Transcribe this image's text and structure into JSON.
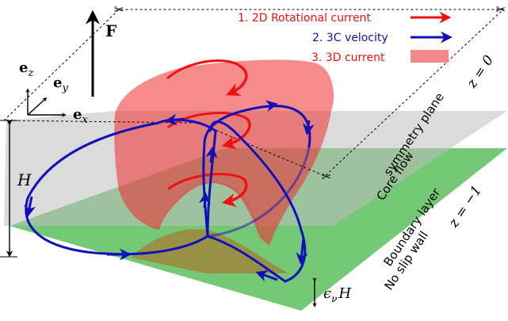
{
  "legend": {
    "item1": {
      "label": "1. 2D Rotational current",
      "color": "#ee1111"
    },
    "item2": {
      "label": "2. 3C velocity",
      "color": "#1010bb"
    },
    "item3": {
      "label": "3. 3D current",
      "color": "#f28a8a"
    }
  },
  "axes": {
    "ez_base": "e",
    "ez_sub": "z",
    "ey_base": "e",
    "ey_sub": "y",
    "ex_base": "e",
    "ex_sub": "x"
  },
  "force_label": "F",
  "height_label": "H",
  "boundary_thickness": {
    "eps": "ϵ",
    "sub": "ν",
    "H": "H"
  },
  "plane_labels": {
    "symmetry_plane": "symmetry plane",
    "z_top": "z = 0",
    "core_flow": "Core flow",
    "boundary_layer": "Boundary layer",
    "no_slip_wall": "No slip wall",
    "z_bottom": "z = −1"
  },
  "colors": {
    "rotational": "#ee1111",
    "velocity": "#1010bb",
    "current": "#f28a8a",
    "boundary": "#66c266",
    "symmetry": "#c8c8c8"
  }
}
